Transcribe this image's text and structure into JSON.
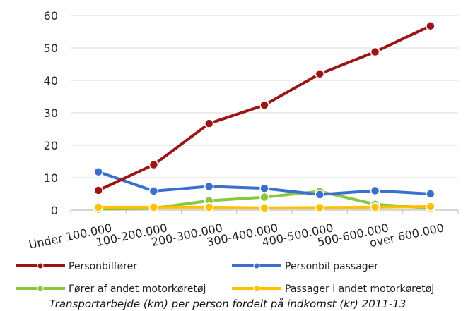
{
  "chart_data": {
    "type": "line",
    "title": "Transportarbejde (km) per person fordelt på indkomst (kr) 2011-13",
    "categories": [
      "Under 100.000",
      "100-200.000",
      "200-300.000",
      "300-400.000",
      "400-500.000",
      "500-600.000",
      "over 600.000"
    ],
    "ylim": [
      0,
      60
    ],
    "yticks": [
      0,
      10,
      20,
      30,
      40,
      50,
      60
    ],
    "grid": true,
    "legend_position": "bottom",
    "series": [
      {
        "name": "Personbilfører",
        "color": "#9b1515",
        "values": [
          6.1,
          14.0,
          26.7,
          32.4,
          42.0,
          48.8,
          56.8
        ]
      },
      {
        "name": "Personbil passager",
        "color": "#3a6fd0",
        "values": [
          11.8,
          5.9,
          7.3,
          6.7,
          4.8,
          6.0,
          5.0
        ]
      },
      {
        "name": "Fører af andet motorkøretøj",
        "color": "#8cc63f",
        "values": [
          0.3,
          0.6,
          2.9,
          4.0,
          5.8,
          1.8,
          0.6
        ]
      },
      {
        "name": "Passager i andet motorkøretøj",
        "color": "#ffc000",
        "values": [
          0.9,
          0.9,
          0.9,
          0.7,
          0.8,
          0.9,
          1.1
        ]
      }
    ]
  }
}
